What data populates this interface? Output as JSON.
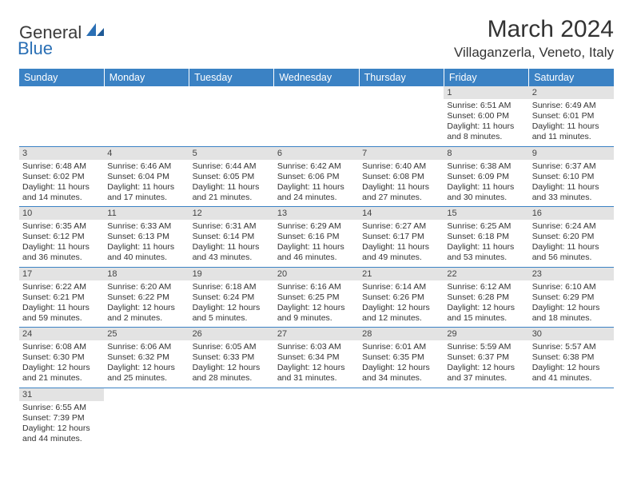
{
  "logo": {
    "part1": "General",
    "part2": "Blue"
  },
  "title": "March 2024",
  "location": "Villaganzerla, Veneto, Italy",
  "weekdays": [
    "Sunday",
    "Monday",
    "Tuesday",
    "Wednesday",
    "Thursday",
    "Friday",
    "Saturday"
  ],
  "colors": {
    "header_bg": "#3b82c4",
    "header_fg": "#ffffff",
    "daynum_bg": "#e3e3e3",
    "border": "#3b82c4",
    "logo_blue": "#2a6fb5"
  },
  "weeks": [
    [
      null,
      null,
      null,
      null,
      null,
      {
        "n": "1",
        "sr": "Sunrise: 6:51 AM",
        "ss": "Sunset: 6:00 PM",
        "dl": "Daylight: 11 hours and 8 minutes."
      },
      {
        "n": "2",
        "sr": "Sunrise: 6:49 AM",
        "ss": "Sunset: 6:01 PM",
        "dl": "Daylight: 11 hours and 11 minutes."
      }
    ],
    [
      {
        "n": "3",
        "sr": "Sunrise: 6:48 AM",
        "ss": "Sunset: 6:02 PM",
        "dl": "Daylight: 11 hours and 14 minutes."
      },
      {
        "n": "4",
        "sr": "Sunrise: 6:46 AM",
        "ss": "Sunset: 6:04 PM",
        "dl": "Daylight: 11 hours and 17 minutes."
      },
      {
        "n": "5",
        "sr": "Sunrise: 6:44 AM",
        "ss": "Sunset: 6:05 PM",
        "dl": "Daylight: 11 hours and 21 minutes."
      },
      {
        "n": "6",
        "sr": "Sunrise: 6:42 AM",
        "ss": "Sunset: 6:06 PM",
        "dl": "Daylight: 11 hours and 24 minutes."
      },
      {
        "n": "7",
        "sr": "Sunrise: 6:40 AM",
        "ss": "Sunset: 6:08 PM",
        "dl": "Daylight: 11 hours and 27 minutes."
      },
      {
        "n": "8",
        "sr": "Sunrise: 6:38 AM",
        "ss": "Sunset: 6:09 PM",
        "dl": "Daylight: 11 hours and 30 minutes."
      },
      {
        "n": "9",
        "sr": "Sunrise: 6:37 AM",
        "ss": "Sunset: 6:10 PM",
        "dl": "Daylight: 11 hours and 33 minutes."
      }
    ],
    [
      {
        "n": "10",
        "sr": "Sunrise: 6:35 AM",
        "ss": "Sunset: 6:12 PM",
        "dl": "Daylight: 11 hours and 36 minutes."
      },
      {
        "n": "11",
        "sr": "Sunrise: 6:33 AM",
        "ss": "Sunset: 6:13 PM",
        "dl": "Daylight: 11 hours and 40 minutes."
      },
      {
        "n": "12",
        "sr": "Sunrise: 6:31 AM",
        "ss": "Sunset: 6:14 PM",
        "dl": "Daylight: 11 hours and 43 minutes."
      },
      {
        "n": "13",
        "sr": "Sunrise: 6:29 AM",
        "ss": "Sunset: 6:16 PM",
        "dl": "Daylight: 11 hours and 46 minutes."
      },
      {
        "n": "14",
        "sr": "Sunrise: 6:27 AM",
        "ss": "Sunset: 6:17 PM",
        "dl": "Daylight: 11 hours and 49 minutes."
      },
      {
        "n": "15",
        "sr": "Sunrise: 6:25 AM",
        "ss": "Sunset: 6:18 PM",
        "dl": "Daylight: 11 hours and 53 minutes."
      },
      {
        "n": "16",
        "sr": "Sunrise: 6:24 AM",
        "ss": "Sunset: 6:20 PM",
        "dl": "Daylight: 11 hours and 56 minutes."
      }
    ],
    [
      {
        "n": "17",
        "sr": "Sunrise: 6:22 AM",
        "ss": "Sunset: 6:21 PM",
        "dl": "Daylight: 11 hours and 59 minutes."
      },
      {
        "n": "18",
        "sr": "Sunrise: 6:20 AM",
        "ss": "Sunset: 6:22 PM",
        "dl": "Daylight: 12 hours and 2 minutes."
      },
      {
        "n": "19",
        "sr": "Sunrise: 6:18 AM",
        "ss": "Sunset: 6:24 PM",
        "dl": "Daylight: 12 hours and 5 minutes."
      },
      {
        "n": "20",
        "sr": "Sunrise: 6:16 AM",
        "ss": "Sunset: 6:25 PM",
        "dl": "Daylight: 12 hours and 9 minutes."
      },
      {
        "n": "21",
        "sr": "Sunrise: 6:14 AM",
        "ss": "Sunset: 6:26 PM",
        "dl": "Daylight: 12 hours and 12 minutes."
      },
      {
        "n": "22",
        "sr": "Sunrise: 6:12 AM",
        "ss": "Sunset: 6:28 PM",
        "dl": "Daylight: 12 hours and 15 minutes."
      },
      {
        "n": "23",
        "sr": "Sunrise: 6:10 AM",
        "ss": "Sunset: 6:29 PM",
        "dl": "Daylight: 12 hours and 18 minutes."
      }
    ],
    [
      {
        "n": "24",
        "sr": "Sunrise: 6:08 AM",
        "ss": "Sunset: 6:30 PM",
        "dl": "Daylight: 12 hours and 21 minutes."
      },
      {
        "n": "25",
        "sr": "Sunrise: 6:06 AM",
        "ss": "Sunset: 6:32 PM",
        "dl": "Daylight: 12 hours and 25 minutes."
      },
      {
        "n": "26",
        "sr": "Sunrise: 6:05 AM",
        "ss": "Sunset: 6:33 PM",
        "dl": "Daylight: 12 hours and 28 minutes."
      },
      {
        "n": "27",
        "sr": "Sunrise: 6:03 AM",
        "ss": "Sunset: 6:34 PM",
        "dl": "Daylight: 12 hours and 31 minutes."
      },
      {
        "n": "28",
        "sr": "Sunrise: 6:01 AM",
        "ss": "Sunset: 6:35 PM",
        "dl": "Daylight: 12 hours and 34 minutes."
      },
      {
        "n": "29",
        "sr": "Sunrise: 5:59 AM",
        "ss": "Sunset: 6:37 PM",
        "dl": "Daylight: 12 hours and 37 minutes."
      },
      {
        "n": "30",
        "sr": "Sunrise: 5:57 AM",
        "ss": "Sunset: 6:38 PM",
        "dl": "Daylight: 12 hours and 41 minutes."
      }
    ],
    [
      {
        "n": "31",
        "sr": "Sunrise: 6:55 AM",
        "ss": "Sunset: 7:39 PM",
        "dl": "Daylight: 12 hours and 44 minutes."
      },
      null,
      null,
      null,
      null,
      null,
      null
    ]
  ]
}
